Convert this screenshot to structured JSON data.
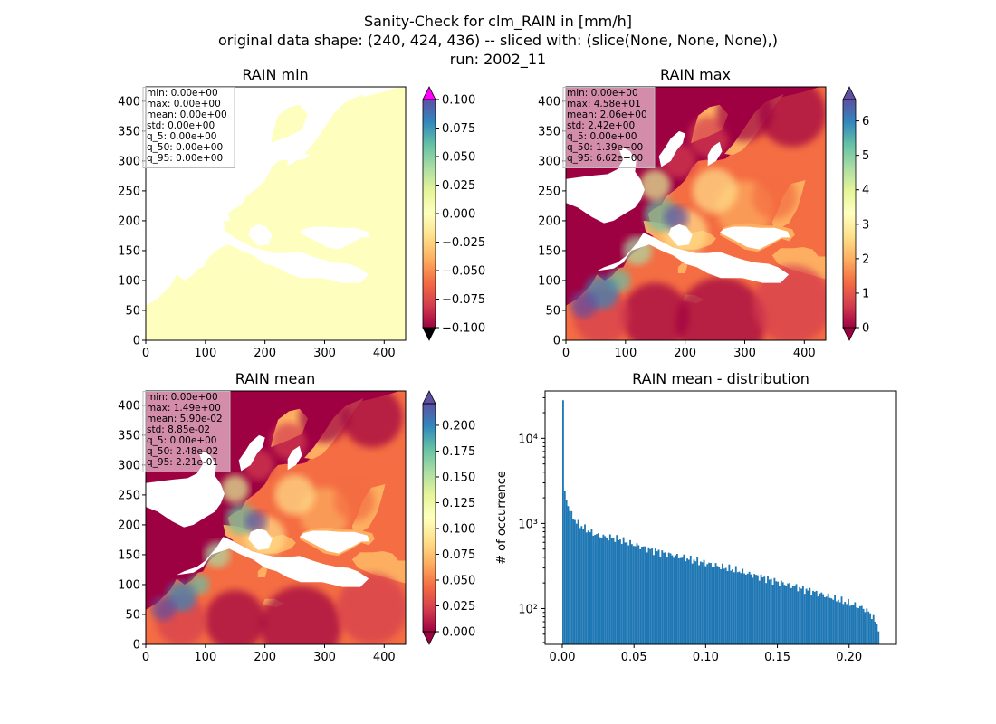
{
  "figure": {
    "title_lines": [
      "Sanity-Check for clm_RAIN in [mm/h]",
      "original data shape: (240, 424, 436) -- sliced with: (slice(None, None, None),)",
      "run: 2002_11"
    ]
  },
  "colors": {
    "ocean": "#9e0142",
    "land_min": "#feffbe",
    "histogram": "#1f77b4",
    "colorbar_over_min": "#ff00ff",
    "colorbar_under": "#000000",
    "stats_box_edge": "#bbbbbb"
  },
  "colormap": {
    "name": "Spectral",
    "stops": [
      "#9e0142",
      "#d53e4f",
      "#f46d43",
      "#fdae61",
      "#fee08b",
      "#ffffbf",
      "#e6f598",
      "#abdda4",
      "#66c2a5",
      "#3288bd",
      "#5e4fa2"
    ]
  },
  "chart_data": [
    {
      "type": "heatmap",
      "title": "RAIN min",
      "x_ticks": [
        "0",
        "100",
        "200",
        "300",
        "400"
      ],
      "y_ticks": [
        "0",
        "50",
        "100",
        "150",
        "200",
        "250",
        "300",
        "350",
        "400"
      ],
      "xlim": [
        0,
        436
      ],
      "ylim": [
        0,
        424
      ],
      "stats": [
        "min: 0.00e+00",
        "max: 0.00e+00",
        "mean: 0.00e+00",
        "std: 0.00e+00",
        "q_5: 0.00e+00",
        "q_50: 0.00e+00",
        "q_95: 0.00e+00"
      ],
      "colorbar": {
        "ticks": [
          "0.100",
          "0.075",
          "0.050",
          "0.025",
          "0.000",
          "−0.025",
          "−0.050",
          "−0.075",
          "−0.100"
        ],
        "range": [
          -0.1,
          0.1
        ],
        "extend": "both"
      }
    },
    {
      "type": "heatmap",
      "title": "RAIN max",
      "x_ticks": [
        "0",
        "100",
        "200",
        "300",
        "400"
      ],
      "y_ticks": [
        "0",
        "50",
        "100",
        "150",
        "200",
        "250",
        "300",
        "350",
        "400"
      ],
      "xlim": [
        0,
        436
      ],
      "ylim": [
        0,
        424
      ],
      "stats": [
        "min: 0.00e+00",
        "max: 4.58e+01",
        "mean: 2.06e+00",
        "std: 2.42e+00",
        "q_5: 0.00e+00",
        "q_50: 1.39e+00",
        "q_95: 6.62e+00"
      ],
      "colorbar": {
        "ticks": [
          "6",
          "5",
          "4",
          "3",
          "2",
          "1",
          "0"
        ],
        "range": [
          0,
          6.62
        ],
        "extend": "both"
      }
    },
    {
      "type": "heatmap",
      "title": "RAIN mean",
      "x_ticks": [
        "0",
        "100",
        "200",
        "300",
        "400"
      ],
      "y_ticks": [
        "0",
        "50",
        "100",
        "150",
        "200",
        "250",
        "300",
        "350",
        "400"
      ],
      "xlim": [
        0,
        436
      ],
      "ylim": [
        0,
        424
      ],
      "stats": [
        "min: 0.00e+00",
        "max: 1.49e+00",
        "mean: 5.90e-02",
        "std: 8.85e-02",
        "q_5: 0.00e+00",
        "q_50: 2.48e-02",
        "q_95: 2.21e-01"
      ],
      "colorbar": {
        "ticks": [
          "0.200",
          "0.175",
          "0.150",
          "0.125",
          "0.100",
          "0.075",
          "0.050",
          "0.025",
          "0.000"
        ],
        "range": [
          0,
          0.221
        ],
        "extend": "both"
      }
    },
    {
      "type": "bar",
      "title": "RAIN mean - distribution",
      "ylabel": "# of occurrence",
      "x_ticks": [
        "0.00",
        "0.05",
        "0.10",
        "0.15",
        "0.20"
      ],
      "y_ticks": [
        "10²",
        "10³",
        "10⁴"
      ],
      "xlim": [
        -0.012,
        0.233
      ],
      "ylim": [
        38,
        36000
      ],
      "yscale": "log",
      "bin_width": 0.00117,
      "x": [
        0.0,
        0.00117,
        0.00234,
        0.0035,
        0.0047,
        0.006,
        0.008,
        0.01,
        0.015,
        0.02,
        0.025,
        0.03,
        0.035,
        0.04,
        0.05,
        0.06,
        0.07,
        0.08,
        0.09,
        0.1,
        0.11,
        0.12,
        0.13,
        0.14,
        0.15,
        0.16,
        0.17,
        0.18,
        0.19,
        0.2,
        0.21,
        0.215,
        0.22
      ],
      "values": [
        28000,
        2400,
        1900,
        1600,
        1400,
        1250,
        1120,
        1000,
        880,
        780,
        720,
        690,
        680,
        640,
        560,
        500,
        450,
        410,
        375,
        340,
        310,
        285,
        255,
        230,
        205,
        185,
        165,
        148,
        130,
        115,
        100,
        85,
        60
      ]
    }
  ]
}
